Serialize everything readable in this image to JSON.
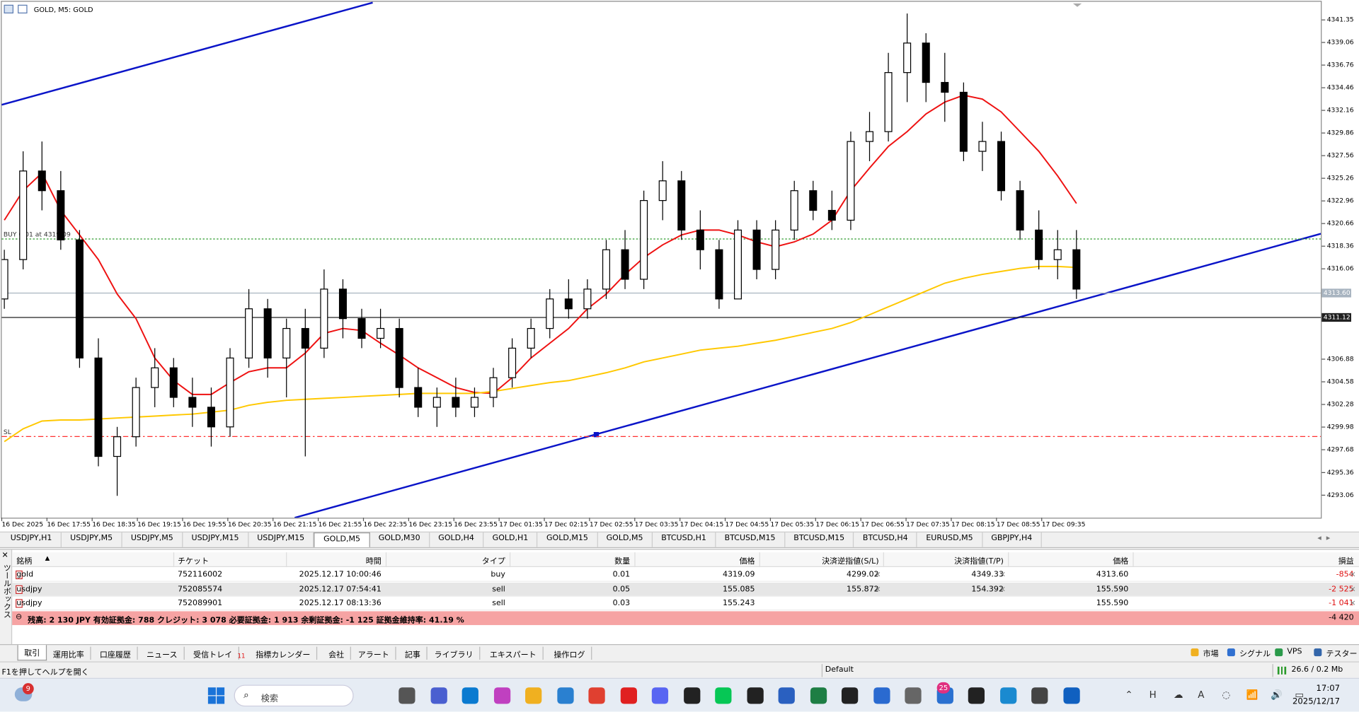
{
  "window": {
    "title": "GOLD, M5:  GOLD"
  },
  "chart_data": {
    "type": "candlestick",
    "ylim": [
      4290.77,
      4343.11
    ],
    "yticks": [
      4341.35,
      4339.06,
      4336.76,
      4334.46,
      4332.16,
      4329.86,
      4327.56,
      4325.26,
      4322.96,
      4320.66,
      4318.36,
      4316.06,
      4306.88,
      4304.58,
      4302.28,
      4299.98,
      4297.68,
      4295.36,
      4293.06
    ],
    "xtick_labels": [
      "16 Dec 2025",
      "16 Dec 17:55",
      "16 Dec 18:35",
      "16 Dec 19:15",
      "16 Dec 19:55",
      "16 Dec 20:35",
      "16 Dec 21:15",
      "16 Dec 21:55",
      "16 Dec 22:35",
      "16 Dec 23:15",
      "16 Dec 23:55",
      "17 Dec 01:35",
      "17 Dec 02:15",
      "17 Dec 02:55",
      "17 Dec 03:35",
      "17 Dec 04:15",
      "17 Dec 04:55",
      "17 Dec 05:35",
      "17 Dec 06:15",
      "17 Dec 06:55",
      "17 Dec 07:35",
      "17 Dec 08:15",
      "17 Dec 08:55",
      "17 Dec 09:35"
    ],
    "ohlc": {
      "open": [
        4313,
        4317,
        4326,
        4324,
        4319,
        4307,
        4297,
        4299,
        4304,
        4306,
        4303,
        4302,
        4300,
        4307,
        4312,
        4307,
        4310,
        4308,
        4314,
        4311,
        4309,
        4310,
        4304,
        4302,
        4303,
        4302,
        4303,
        4305,
        4308,
        4310,
        4313,
        4312,
        4314,
        4318,
        4315,
        4323,
        4325,
        4320,
        4318,
        4313,
        4320,
        4316,
        4320,
        4324,
        4322,
        4321,
        4329,
        4330,
        4336,
        4339,
        4335,
        4334,
        4328,
        4329,
        4324,
        4320,
        4317,
        4318
      ],
      "high": [
        4318,
        4328,
        4329,
        4326,
        4320,
        4309,
        4300,
        4305,
        4308,
        4307,
        4305,
        4304,
        4308,
        4314,
        4313,
        4311,
        4312,
        4316,
        4315,
        4312,
        4312,
        4311,
        4306,
        4304,
        4305,
        4304,
        4306,
        4309,
        4311,
        4314,
        4315,
        4315,
        4319,
        4320,
        4324,
        4327,
        4326,
        4322,
        4319,
        4321,
        4321,
        4321,
        4325,
        4325,
        4324,
        4330,
        4332,
        4338,
        4342,
        4340,
        4338,
        4335,
        4331,
        4330,
        4325,
        4322,
        4320,
        4320
      ],
      "low": [
        4312,
        4316,
        4322,
        4318,
        4306,
        4296,
        4293,
        4298,
        4302,
        4302,
        4300,
        4298,
        4299,
        4306,
        4305,
        4303,
        4297,
        4307,
        4309,
        4308,
        4308,
        4303,
        4301,
        4300,
        4301,
        4301,
        4302,
        4304,
        4307,
        4309,
        4311,
        4311,
        4313,
        4314,
        4314,
        4321,
        4319,
        4316,
        4312,
        4313,
        4315,
        4315,
        4319,
        4321,
        4320,
        4320,
        4327,
        4329,
        4333,
        4333,
        4331,
        4327,
        4326,
        4323,
        4319,
        4316,
        4315,
        4313
      ],
      "close": [
        4317,
        4326,
        4324,
        4319,
        4307,
        4297,
        4299,
        4304,
        4306,
        4303,
        4302,
        4300,
        4307,
        4312,
        4307,
        4310,
        4308,
        4314,
        4311,
        4309,
        4310,
        4304,
        4302,
        4303,
        4302,
        4303,
        4305,
        4308,
        4310,
        4313,
        4312,
        4314,
        4318,
        4315,
        4323,
        4325,
        4320,
        4318,
        4313,
        4320,
        4316,
        4320,
        4324,
        4322,
        4321,
        4329,
        4330,
        4336,
        4339,
        4335,
        4334,
        4328,
        4329,
        4324,
        4320,
        4317,
        4318,
        4314
      ]
    },
    "lines": [
      {
        "color": "#ee1111",
        "values": [
          4321,
          4324,
          4325.8,
          4322,
          4319.5,
          4317,
          4313.5,
          4311,
          4307,
          4304.7,
          4303.3,
          4303.3,
          4304.5,
          4305.6,
          4306,
          4306,
          4307.5,
          4309.5,
          4310,
          4309.8,
          4308.5,
          4307.3,
          4306,
          4305,
          4304,
          4303.5,
          4303.4,
          4305,
          4307,
          4308.5,
          4310,
          4312,
          4313.5,
          4315.5,
          4317.2,
          4318.5,
          4319.5,
          4320,
          4320,
          4319.5,
          4318.8,
          4318.3,
          4318.8,
          4319.6,
          4321,
          4324,
          4326.3,
          4328.5,
          4330,
          4331.8,
          4333,
          4333.7,
          4333.3,
          4332,
          4330,
          4328,
          4325.5,
          4322.7
        ]
      },
      {
        "color": "#ffc800",
        "values": [
          4298.5,
          4299.8,
          4300.6,
          4300.7,
          4300.7,
          4300.8,
          4300.9,
          4301,
          4301.1,
          4301.2,
          4301.3,
          4301.5,
          4301.7,
          4302.2,
          4302.5,
          4302.7,
          4302.8,
          4302.9,
          4303,
          4303.1,
          4303.2,
          4303.3,
          4303.4,
          4303.4,
          4303.4,
          4303.4,
          4303.6,
          4303.9,
          4304.2,
          4304.5,
          4304.7,
          4305.1,
          4305.5,
          4306,
          4306.6,
          4307,
          4307.4,
          4307.8,
          4308,
          4308.2,
          4308.5,
          4308.8,
          4309.2,
          4309.6,
          4310,
          4310.6,
          4311.4,
          4312.2,
          4313,
          4313.8,
          4314.6,
          4315.1,
          4315.5,
          4315.8,
          4316.1,
          4316.3,
          4316.3,
          4316.2
        ]
      }
    ],
    "levels": [
      {
        "value": 4319.09,
        "color": "#2a9a2a",
        "style": "dotted",
        "label": "BUY 0.01 at 4319.09"
      },
      {
        "value": 4299.02,
        "color": "#ff3030",
        "style": "dashdot",
        "label": "SL"
      },
      {
        "value": 4313.6,
        "color": "#a8b4c0",
        "style": "solid",
        "axis_label": "4313.60"
      },
      {
        "value": 4311.12,
        "color": "#202020",
        "style": "solid",
        "axis_label": "4311.12"
      }
    ]
  },
  "chart_tabs": [
    "USDJPY,H1",
    "USDJPY,M5",
    "USDJPY,M5",
    "USDJPY,M15",
    "USDJPY,M15",
    "GOLD,M5",
    "GOLD,M30",
    "GOLD,H4",
    "GOLD,H1",
    "GOLD,M15",
    "GOLD,M5",
    "BTCUSD,H1",
    "BTCUSD,M15",
    "BTCUSD,M15",
    "BTCUSD,H4",
    "EURUSD,M5",
    "GBPJPY,H4"
  ],
  "terminal": {
    "toolbox_label": "ツールボックス",
    "columns": [
      "銘柄",
      "チケット",
      "時間",
      "タイプ",
      "数量",
      "価格",
      "決済逆指値(S/L)",
      "決済指値(T/P)",
      "価格",
      "損益"
    ],
    "rows": [
      [
        "gold",
        "752116002",
        "2025.12.17 10:00:46",
        "buy",
        "0.01",
        "4319.09",
        "4299.02",
        "4349.33",
        "4313.60",
        "-854"
      ],
      [
        "usdjpy",
        "752085574",
        "2025.12.17 07:54:41",
        "sell",
        "0.05",
        "155.085",
        "155.872",
        "154.392",
        "155.590",
        "-2 525"
      ],
      [
        "usdjpy",
        "752089901",
        "2025.12.17 08:13:36",
        "sell",
        "0.03",
        "155.243",
        null,
        null,
        "155.590",
        "-1 041"
      ]
    ],
    "balance": "残高: 2 130 JPY  有効証拠金: 788  クレジット: 3 078  必要証拠金: 1 913  余剰証拠金: -1 125  証拠金維持率: 41.19 %",
    "total": "-4 420",
    "tabs": [
      "取引",
      "運用比率",
      "口座履歴",
      "ニュース",
      "受信トレイ",
      "指標カレンダー",
      "会社",
      "アラート",
      "記事",
      "ライブラリ",
      "エキスパート",
      "操作ログ"
    ],
    "inbox_badge": "11",
    "tools": [
      "市場",
      "シグナル",
      "VPS",
      "テスター"
    ]
  },
  "status": {
    "help": "F1を押してヘルプを開く",
    "profile": "Default",
    "traffic": "26.6 / 0.2 Mb"
  },
  "taskbar": {
    "search": "検索",
    "weather_badge": "9",
    "mail_badge": "25",
    "time": "17:07",
    "date": "2025/12/17"
  }
}
